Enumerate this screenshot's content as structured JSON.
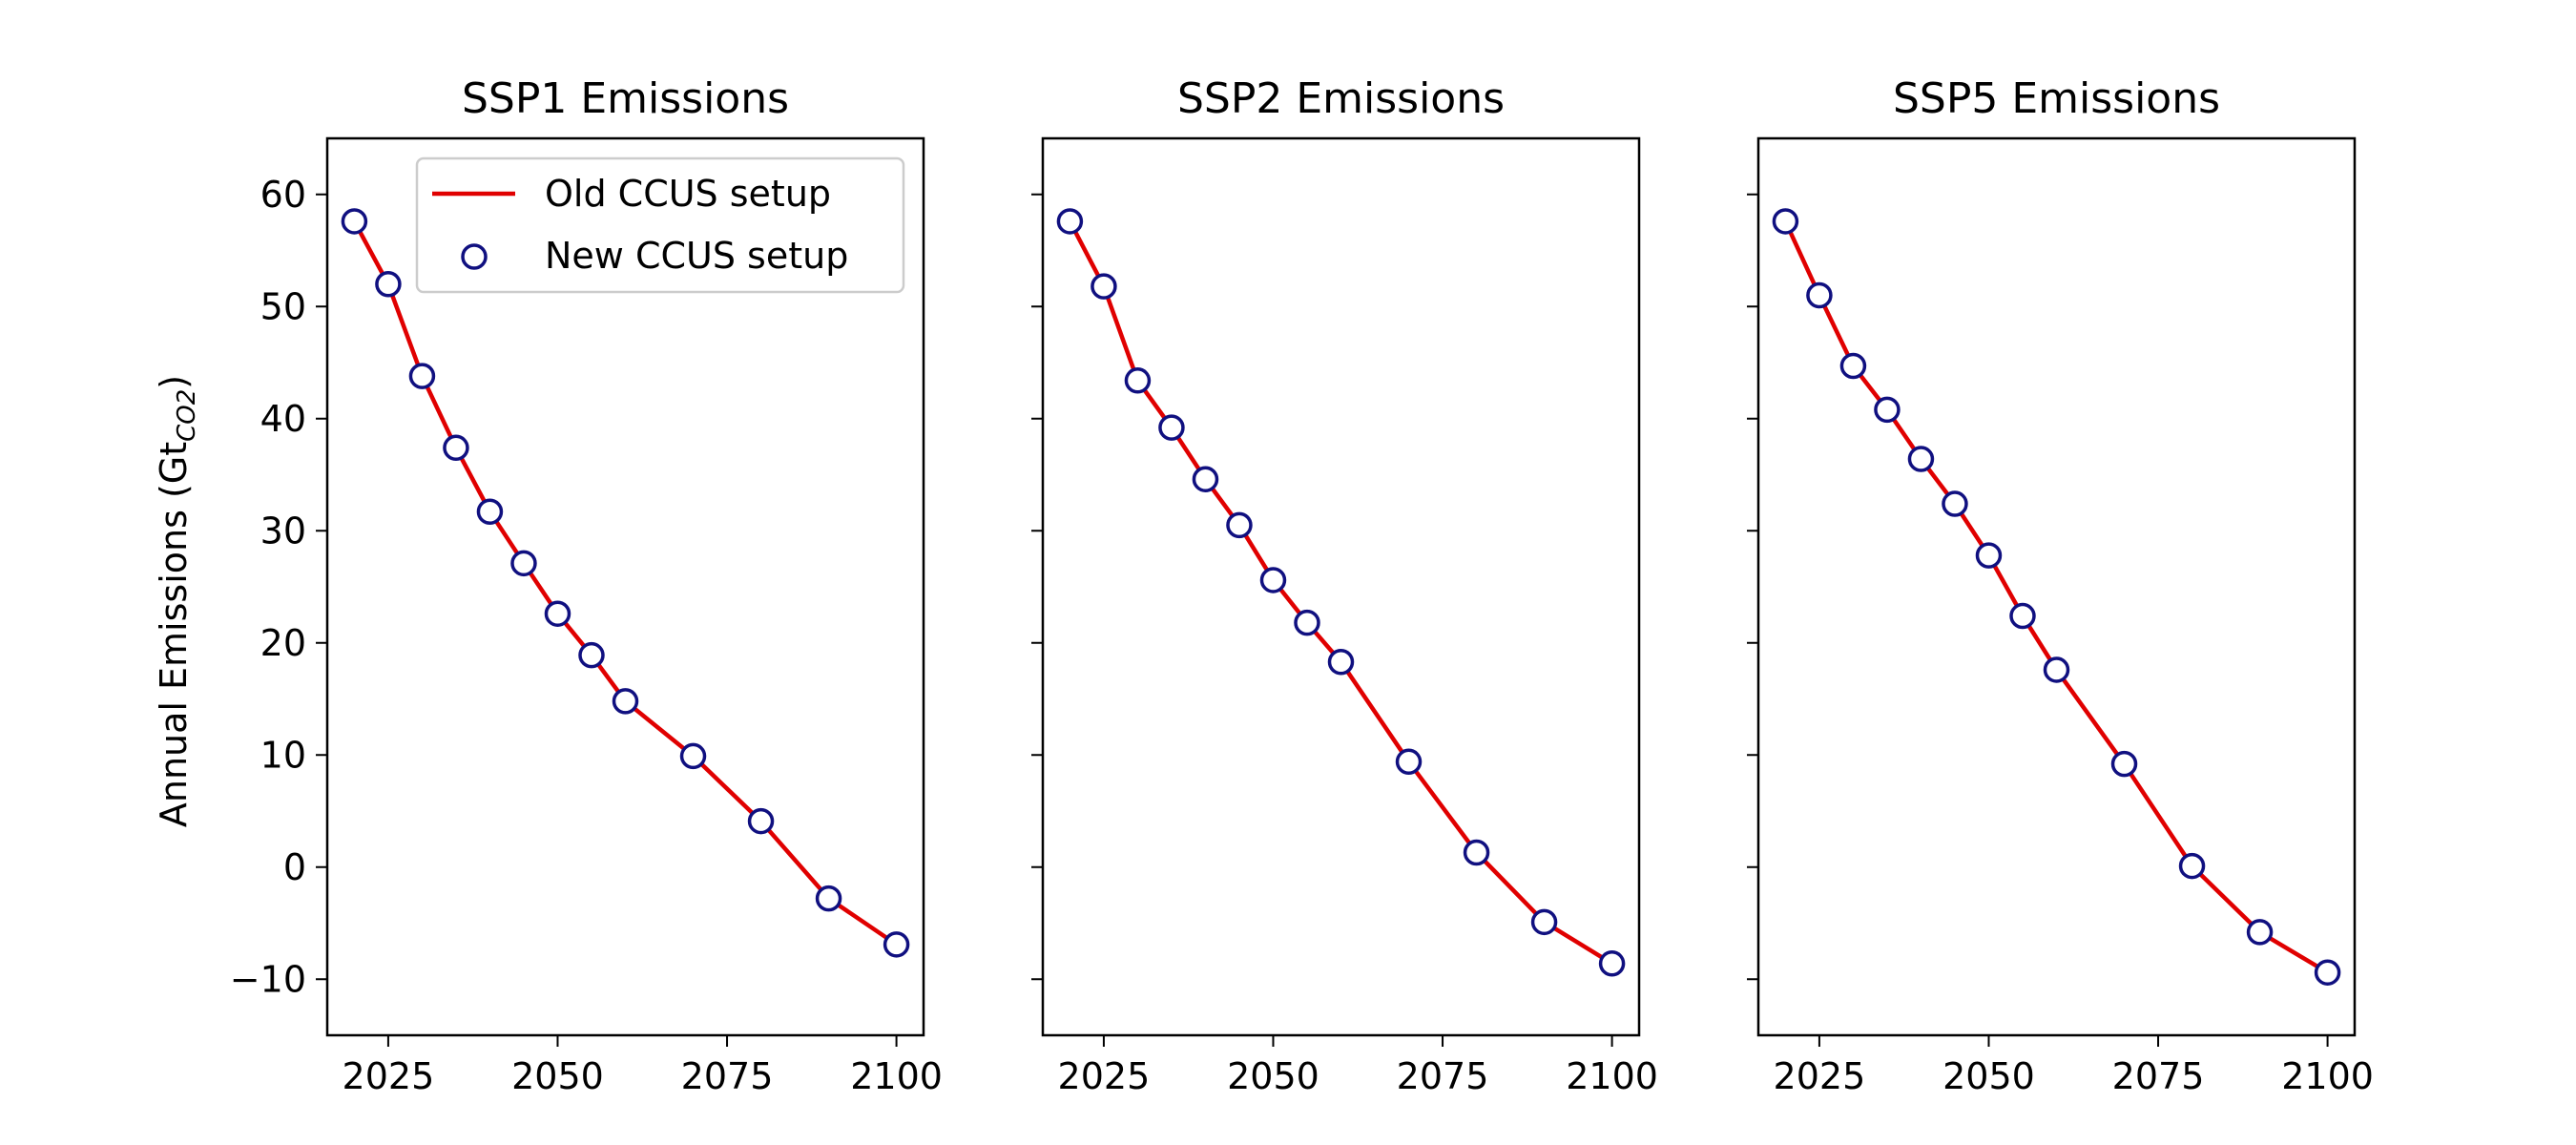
{
  "chart_data": {
    "type": "line",
    "ylabel": "Annual Emissions (Gt",
    "ylabel_sub": "CO2",
    "ylabel_close": ")",
    "ylim": [
      -15,
      65
    ],
    "yticks": [
      -10,
      0,
      10,
      20,
      30,
      40,
      50,
      60
    ],
    "ytick_labels": [
      "−10",
      "0",
      "10",
      "20",
      "30",
      "40",
      "50",
      "60"
    ],
    "xlim": [
      2016,
      2104
    ],
    "xticks": [
      2025,
      2050,
      2075,
      2100
    ],
    "xtick_labels": [
      "2025",
      "2050",
      "2075",
      "2100"
    ],
    "legend": {
      "placement": "upper right of first panel",
      "line_label": "Old CCUS setup",
      "marker_label": "New CCUS setup"
    },
    "colors": {
      "line": "#e00000",
      "marker_edge": "#101080",
      "marker_face": "#ffffff"
    },
    "panels": [
      {
        "title": "SSP1 Emissions",
        "x": [
          2020,
          2025,
          2030,
          2035,
          2040,
          2045,
          2050,
          2055,
          2060,
          2070,
          2080,
          2090,
          2100
        ],
        "old": [
          57.6,
          52.0,
          43.8,
          37.4,
          31.7,
          27.1,
          22.6,
          18.9,
          14.8,
          9.9,
          4.1,
          -2.8,
          -6.9
        ],
        "new": [
          57.6,
          52.0,
          43.8,
          37.4,
          31.7,
          27.1,
          22.6,
          18.9,
          14.8,
          9.9,
          4.1,
          -2.8,
          -6.9
        ]
      },
      {
        "title": "SSP2 Emissions",
        "x": [
          2020,
          2025,
          2030,
          2035,
          2040,
          2045,
          2050,
          2055,
          2060,
          2070,
          2080,
          2090,
          2100
        ],
        "old": [
          57.6,
          51.8,
          43.4,
          39.2,
          34.6,
          30.5,
          25.6,
          21.8,
          18.3,
          9.4,
          1.3,
          -4.9,
          -8.6
        ],
        "new": [
          57.6,
          51.8,
          43.4,
          39.2,
          34.6,
          30.5,
          25.6,
          21.8,
          18.3,
          9.4,
          1.3,
          -4.9,
          -8.6
        ]
      },
      {
        "title": "SSP5 Emissions",
        "x": [
          2020,
          2025,
          2030,
          2035,
          2040,
          2045,
          2050,
          2055,
          2060,
          2070,
          2080,
          2090,
          2100
        ],
        "old": [
          57.6,
          51.0,
          44.7,
          40.8,
          36.4,
          32.4,
          27.8,
          22.4,
          17.6,
          9.2,
          0.1,
          -5.8,
          -9.4
        ],
        "new": [
          57.6,
          51.0,
          44.7,
          40.8,
          36.4,
          32.4,
          27.8,
          22.4,
          17.6,
          9.2,
          0.1,
          -5.8,
          -9.4
        ]
      }
    ]
  }
}
